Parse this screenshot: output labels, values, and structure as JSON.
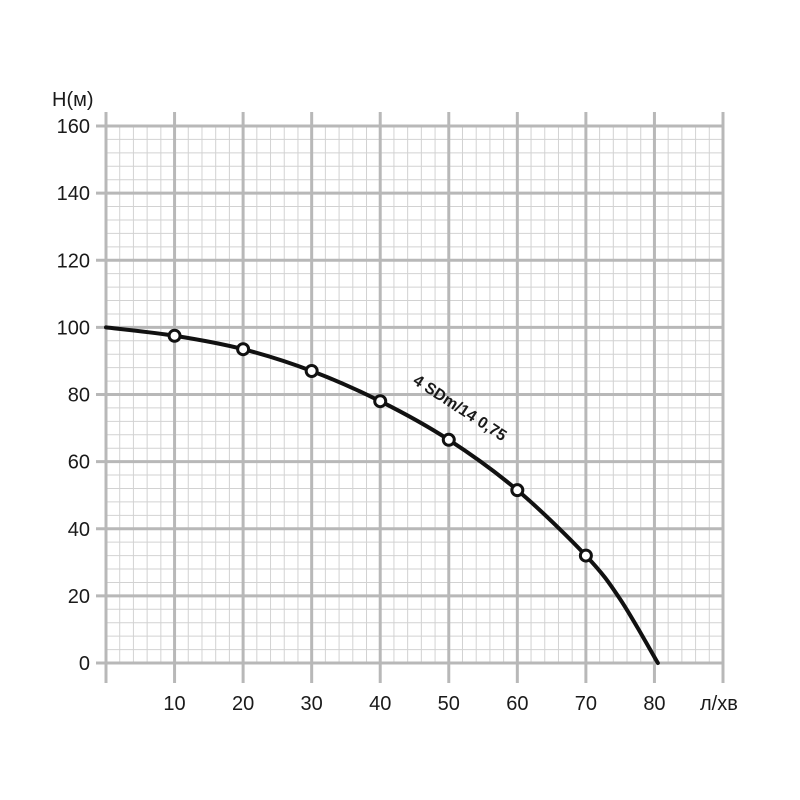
{
  "chart_data": {
    "type": "line",
    "xlabel": "л/хв",
    "ylabel": "Н(м)",
    "xlim": [
      0,
      90
    ],
    "ylim": [
      0,
      160
    ],
    "x_ticks": [
      10,
      20,
      30,
      40,
      50,
      60,
      70,
      80
    ],
    "y_ticks": [
      0,
      20,
      40,
      60,
      80,
      100,
      120,
      140,
      160
    ],
    "grid": true,
    "series": [
      {
        "name": "4 SDm/14 0,75",
        "color": "#111111",
        "curve": [
          {
            "x": 0,
            "y": 100
          },
          {
            "x": 10,
            "y": 97.5
          },
          {
            "x": 20,
            "y": 93.5
          },
          {
            "x": 30,
            "y": 87
          },
          {
            "x": 40,
            "y": 78
          },
          {
            "x": 50,
            "y": 66.5
          },
          {
            "x": 60,
            "y": 51.5
          },
          {
            "x": 70,
            "y": 32
          },
          {
            "x": 75,
            "y": 19
          },
          {
            "x": 80.5,
            "y": 0
          }
        ],
        "markers": [
          {
            "x": 10,
            "y": 97.5
          },
          {
            "x": 20,
            "y": 93.5
          },
          {
            "x": 30,
            "y": 87
          },
          {
            "x": 40,
            "y": 78
          },
          {
            "x": 50,
            "y": 66.5
          },
          {
            "x": 60,
            "y": 51.5
          },
          {
            "x": 70,
            "y": 32
          }
        ]
      }
    ]
  }
}
